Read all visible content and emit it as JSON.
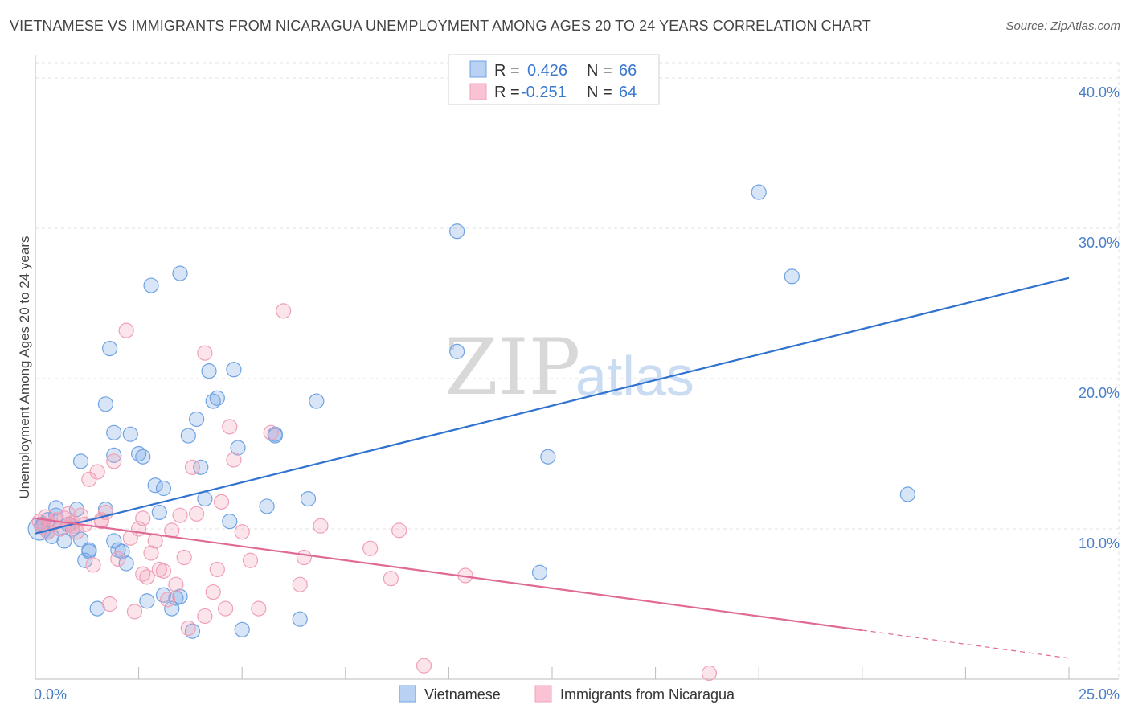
{
  "title": "VIETNAMESE VS IMMIGRANTS FROM NICARAGUA UNEMPLOYMENT AMONG AGES 20 TO 24 YEARS CORRELATION CHART",
  "source": "Source: ZipAtlas.com",
  "watermark": {
    "zip": "ZIP",
    "atlas": "atlas"
  },
  "colors": {
    "blue": "#6fa3e3",
    "blue_line": "#2f72cf",
    "pink": "#f0a0b8",
    "pink_line": "#e06a96",
    "grid": "#e2e2e2"
  },
  "legend": {
    "r_label": "R =",
    "n_label": "N =",
    "rows": [
      {
        "r": "0.426",
        "n": "66"
      },
      {
        "r": "-0.251",
        "n": "64"
      }
    ]
  },
  "chart_data": {
    "type": "scatter",
    "title": "VIETNAMESE VS IMMIGRANTS FROM NICARAGUA UNEMPLOYMENT AMONG AGES 20 TO 24 YEARS CORRELATION CHART",
    "xlabel": "",
    "ylabel": "Unemployment Among Ages 20 to 24 years",
    "xlim": [
      0,
      25
    ],
    "ylim": [
      0,
      40
    ],
    "x_ticks": [
      "0.0%",
      "25.0%"
    ],
    "y_ticks": [
      {
        "value": 10,
        "label": "10.0%"
      },
      {
        "value": 20,
        "label": "20.0%"
      },
      {
        "value": 30,
        "label": "30.0%"
      },
      {
        "value": 40,
        "label": "40.0%"
      }
    ],
    "grid": true,
    "legend_position": "top-center",
    "series": [
      {
        "name": "Vietnamese",
        "color": "#6fa3e3",
        "trend": {
          "x0": 0,
          "y0": 10.5,
          "x1": 25,
          "y1": 26.7
        },
        "points": [
          [
            0.1,
            10.0
          ],
          [
            0.2,
            10.3
          ],
          [
            0.3,
            9.8
          ],
          [
            0.4,
            9.5
          ],
          [
            0.5,
            11.4
          ],
          [
            0.6,
            10.0
          ],
          [
            0.7,
            9.2
          ],
          [
            0.8,
            10.3
          ],
          [
            0.9,
            10.0
          ],
          [
            1.0,
            11.3
          ],
          [
            1.1,
            9.3
          ],
          [
            1.2,
            7.9
          ],
          [
            1.3,
            8.6
          ],
          [
            1.1,
            14.5
          ],
          [
            1.7,
            18.3
          ],
          [
            1.8,
            22.0
          ],
          [
            1.9,
            16.4
          ],
          [
            1.9,
            14.9
          ],
          [
            2.3,
            16.3
          ],
          [
            2.5,
            15.0
          ],
          [
            2.6,
            14.8
          ],
          [
            2.8,
            26.2
          ],
          [
            2.9,
            12.9
          ],
          [
            3.0,
            11.1
          ],
          [
            3.1,
            12.7
          ],
          [
            3.5,
            27.0
          ],
          [
            3.7,
            16.2
          ],
          [
            3.9,
            17.3
          ],
          [
            4.0,
            14.1
          ],
          [
            4.1,
            12.0
          ],
          [
            4.2,
            20.5
          ],
          [
            4.3,
            18.5
          ],
          [
            4.4,
            18.7
          ],
          [
            4.8,
            20.6
          ],
          [
            4.9,
            15.4
          ],
          [
            4.7,
            10.5
          ],
          [
            5.6,
            11.5
          ],
          [
            5.8,
            16.2
          ],
          [
            5.8,
            16.3
          ],
          [
            6.8,
            18.5
          ],
          [
            6.6,
            12.0
          ],
          [
            6.4,
            4.0
          ],
          [
            5.0,
            3.3
          ],
          [
            3.5,
            5.5
          ],
          [
            3.3,
            4.7
          ],
          [
            3.1,
            5.6
          ],
          [
            3.8,
            3.2
          ],
          [
            2.7,
            5.2
          ],
          [
            2.1,
            8.5
          ],
          [
            2.2,
            7.7
          ],
          [
            1.9,
            9.2
          ],
          [
            1.5,
            4.7
          ],
          [
            1.3,
            8.5
          ],
          [
            1.7,
            11.3
          ],
          [
            10.2,
            29.8
          ],
          [
            10.2,
            21.8
          ],
          [
            12.4,
            14.8
          ],
          [
            12.2,
            7.1
          ],
          [
            17.5,
            32.4
          ],
          [
            18.3,
            26.8
          ],
          [
            21.1,
            12.3
          ],
          [
            0.5,
            10.9
          ],
          [
            0.3,
            10.6
          ],
          [
            0.15,
            10.2
          ],
          [
            2.0,
            8.6
          ],
          [
            3.4,
            5.4
          ]
        ]
      },
      {
        "name": "Immigrants from Nicaragua",
        "color": "#f0a0b8",
        "trend": {
          "x0": 0,
          "y0": 10.7,
          "x1": 25,
          "y1": 1.4
        },
        "trend_solid_until_x": 20,
        "points": [
          [
            0.1,
            10.5
          ],
          [
            0.2,
            10.1
          ],
          [
            0.3,
            9.8
          ],
          [
            0.4,
            10.3
          ],
          [
            0.5,
            10.6
          ],
          [
            0.6,
            10.0
          ],
          [
            0.7,
            10.7
          ],
          [
            0.8,
            11.0
          ],
          [
            0.9,
            10.4
          ],
          [
            1.0,
            9.8
          ],
          [
            1.1,
            10.9
          ],
          [
            1.2,
            10.3
          ],
          [
            1.3,
            13.3
          ],
          [
            1.5,
            13.8
          ],
          [
            1.6,
            10.6
          ],
          [
            1.7,
            11.1
          ],
          [
            1.9,
            14.5
          ],
          [
            2.2,
            23.2
          ],
          [
            2.3,
            9.4
          ],
          [
            2.5,
            10.0
          ],
          [
            2.6,
            10.7
          ],
          [
            2.7,
            6.8
          ],
          [
            2.8,
            8.4
          ],
          [
            2.9,
            9.2
          ],
          [
            3.0,
            7.3
          ],
          [
            3.3,
            9.9
          ],
          [
            3.4,
            6.3
          ],
          [
            3.5,
            10.9
          ],
          [
            3.6,
            8.1
          ],
          [
            3.8,
            14.1
          ],
          [
            3.9,
            11.0
          ],
          [
            4.1,
            21.7
          ],
          [
            4.3,
            5.8
          ],
          [
            4.4,
            7.3
          ],
          [
            4.5,
            11.8
          ],
          [
            4.7,
            16.8
          ],
          [
            4.8,
            14.6
          ],
          [
            5.0,
            9.8
          ],
          [
            5.2,
            7.9
          ],
          [
            5.7,
            16.4
          ],
          [
            6.0,
            24.5
          ],
          [
            6.4,
            6.3
          ],
          [
            6.5,
            8.1
          ],
          [
            6.9,
            10.2
          ],
          [
            8.1,
            8.7
          ],
          [
            8.6,
            6.7
          ],
          [
            8.8,
            9.9
          ],
          [
            9.4,
            0.9
          ],
          [
            10.4,
            6.9
          ],
          [
            16.3,
            0.4
          ],
          [
            1.4,
            7.6
          ],
          [
            1.8,
            5.0
          ],
          [
            2.4,
            4.5
          ],
          [
            3.2,
            5.3
          ],
          [
            3.7,
            3.4
          ],
          [
            4.1,
            4.2
          ],
          [
            4.6,
            4.7
          ],
          [
            5.4,
            4.7
          ],
          [
            0.9,
            10.2
          ],
          [
            1.6,
            10.5
          ],
          [
            2.0,
            8.0
          ],
          [
            2.6,
            7.0
          ],
          [
            3.1,
            7.2
          ],
          [
            0.25,
            10.8
          ]
        ]
      }
    ]
  },
  "bottom_legend": [
    {
      "label": "Vietnamese"
    },
    {
      "label": "Immigrants from Nicaragua"
    }
  ]
}
